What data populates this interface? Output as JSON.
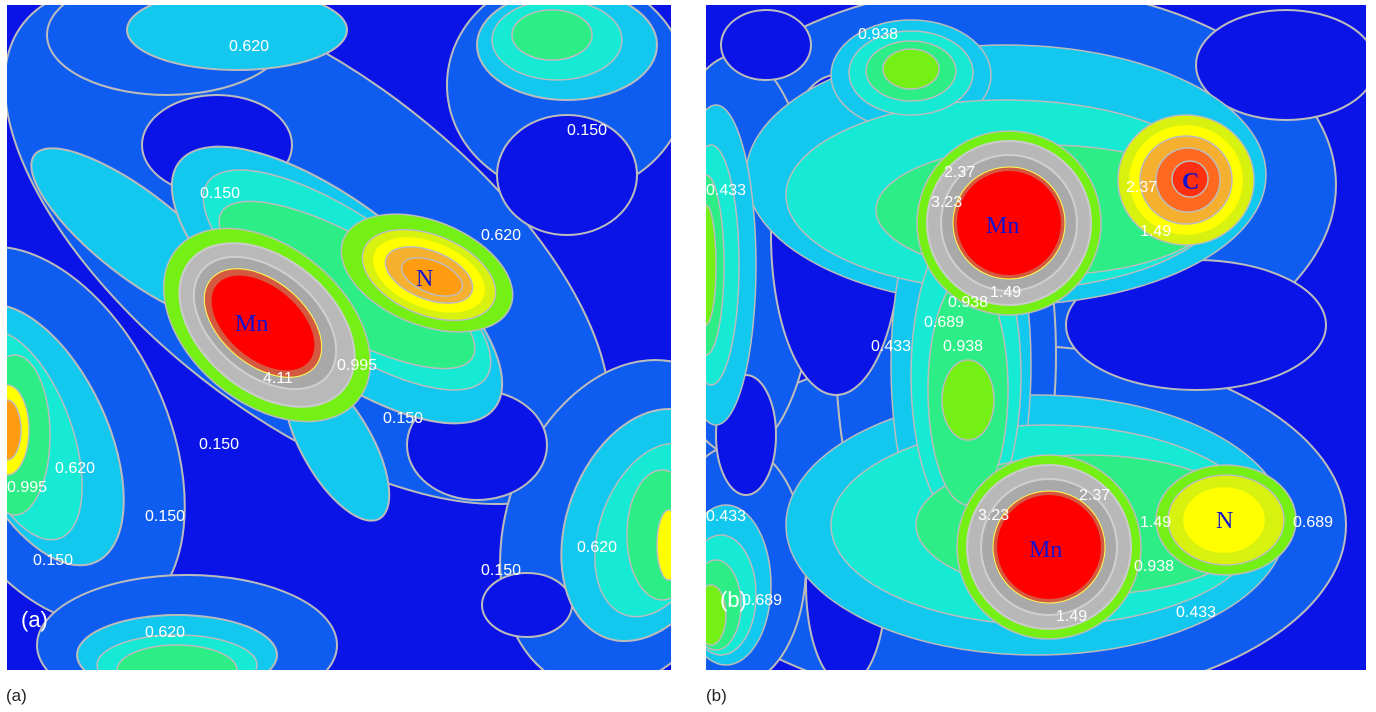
{
  "figure": {
    "caption_a": "(a)",
    "caption_b": "(b)"
  },
  "panel_a": {
    "inner_label": "(a)",
    "atom_mn": "Mn",
    "atom_n": "N",
    "contours": {
      "c_0620_top": "0.620",
      "c_0150_top_right": "0.150",
      "c_0150_left": "0.150",
      "c_0620_right_of_n": "0.620",
      "c_411": "4.11",
      "c_0995_center": "0.995",
      "c_0150_center": "0.150",
      "c_0150_left_lower": "0.150",
      "c_0620_left": "0.620",
      "c_0995_left": "0.995",
      "c_0150_lower": "0.150",
      "c_0150_bottom_left": "0.150",
      "c_0620_bottom_right": "0.620",
      "c_0150_bottom_right": "0.150",
      "c_0620_bottom": "0.620"
    }
  },
  "panel_b": {
    "inner_label": "(b)",
    "atom_mn_top": "Mn",
    "atom_c": "C",
    "atom_mn_bottom": "Mn",
    "atom_n": "N",
    "contours": {
      "c_0938_top": "0.938",
      "c_0433_left_edge": "0.433",
      "c_237_mn1": "2.37",
      "c_323_mn1": "3.23",
      "c_149_mn1": "1.49",
      "c_0938_mn1": "0.938",
      "c_237_c": "2.37",
      "c_149_c": "1.49",
      "c_0689_mid": "0.689",
      "c_0433_mid": "0.433",
      "c_0938_mid": "0.938",
      "c_237_mn2": "2.37",
      "c_323_mn2": "3.23",
      "c_149_n": "1.49",
      "c_0689_n": "0.689",
      "c_0938_mn2": "0.938",
      "c_149_mn2": "1.49",
      "c_0433_bottom": "0.433",
      "c_0433_lower_left": "0.433",
      "c_0689_bottom_left": "0.689"
    }
  },
  "colors": {
    "background": "#0a14e6",
    "level_1": "#0e5cf0",
    "level_2": "#12c8ef",
    "level_3": "#16e9d4",
    "level_4": "#2ded86",
    "level_5": "#74f015",
    "level_6": "#d8f20f",
    "level_7": "#ffff00",
    "level_8": "#ff9c10",
    "level_9": "#ff3010",
    "core": "#ff0000",
    "contour_line": "#bcbcbc",
    "label": "#ffffff",
    "atom_label": "#1212d0"
  }
}
